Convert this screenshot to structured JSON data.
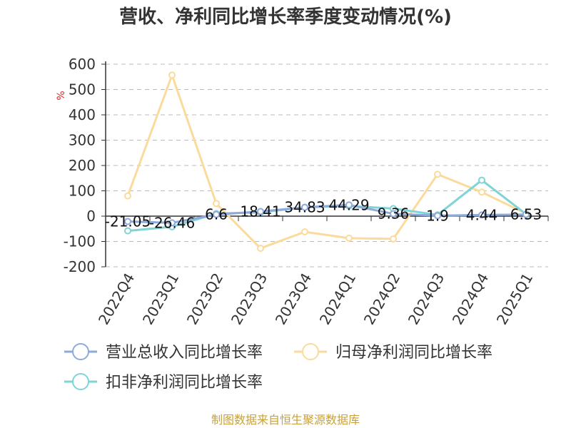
{
  "chart_data": {
    "type": "line",
    "title": "营收、净利同比增长率季度变动情况(%)",
    "unit": "%",
    "categories": [
      "2022Q4",
      "2023Q1",
      "2023Q2",
      "2023Q3",
      "2023Q4",
      "2024Q1",
      "2024Q2",
      "2024Q3",
      "2024Q4",
      "2025Q1"
    ],
    "ylim": [
      -200,
      600
    ],
    "yticks": [
      -200,
      -100,
      0,
      100,
      200,
      300,
      400,
      500,
      600
    ],
    "grid": true,
    "legend_position": "bottom",
    "series": [
      {
        "name": "营业总收入同比增长率",
        "color": "#8eaadb",
        "values": [
          -21.05,
          -26.46,
          6.6,
          18.41,
          34.83,
          44.29,
          9.36,
          1.9,
          4.44,
          6.53
        ],
        "labels": [
          "-21.05",
          "-26.46",
          "6.6",
          "18.41",
          "34.83",
          "44.29",
          "9.36",
          "1.9",
          "4.44",
          "6.53"
        ]
      },
      {
        "name": "归母净利润同比增长率",
        "color": "#fbdb9b",
        "values": [
          80,
          557,
          50,
          -127,
          -62,
          -87,
          -90,
          165,
          95,
          10
        ]
      },
      {
        "name": "扣非净利润同比增长率",
        "color": "#7fd4d6",
        "values": [
          -58,
          -42,
          10,
          15,
          35,
          40,
          30,
          5,
          142,
          8
        ]
      }
    ]
  },
  "source": "制图数据来自恒生聚源数据库"
}
